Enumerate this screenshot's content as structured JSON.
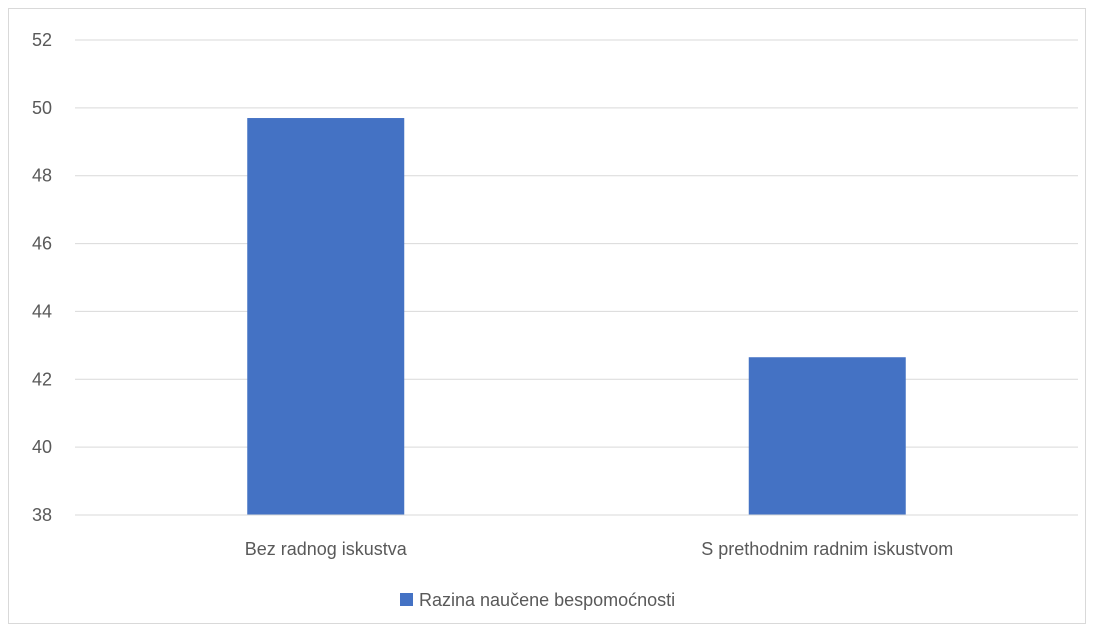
{
  "chart_data": {
    "type": "bar",
    "categories": [
      "Bez radnog iskustva",
      "S prethodnim radnim iskustvom"
    ],
    "series": [
      {
        "name": "Razina naučene bespomoćnosti",
        "values": [
          49.7,
          42.65
        ],
        "color": "#4472C4"
      }
    ],
    "ylim": [
      38,
      52
    ],
    "yticks": [
      38,
      40,
      42,
      44,
      46,
      48,
      50,
      52
    ],
    "grid": true,
    "legend": "bottom",
    "title": "",
    "xlabel": "",
    "ylabel": ""
  }
}
